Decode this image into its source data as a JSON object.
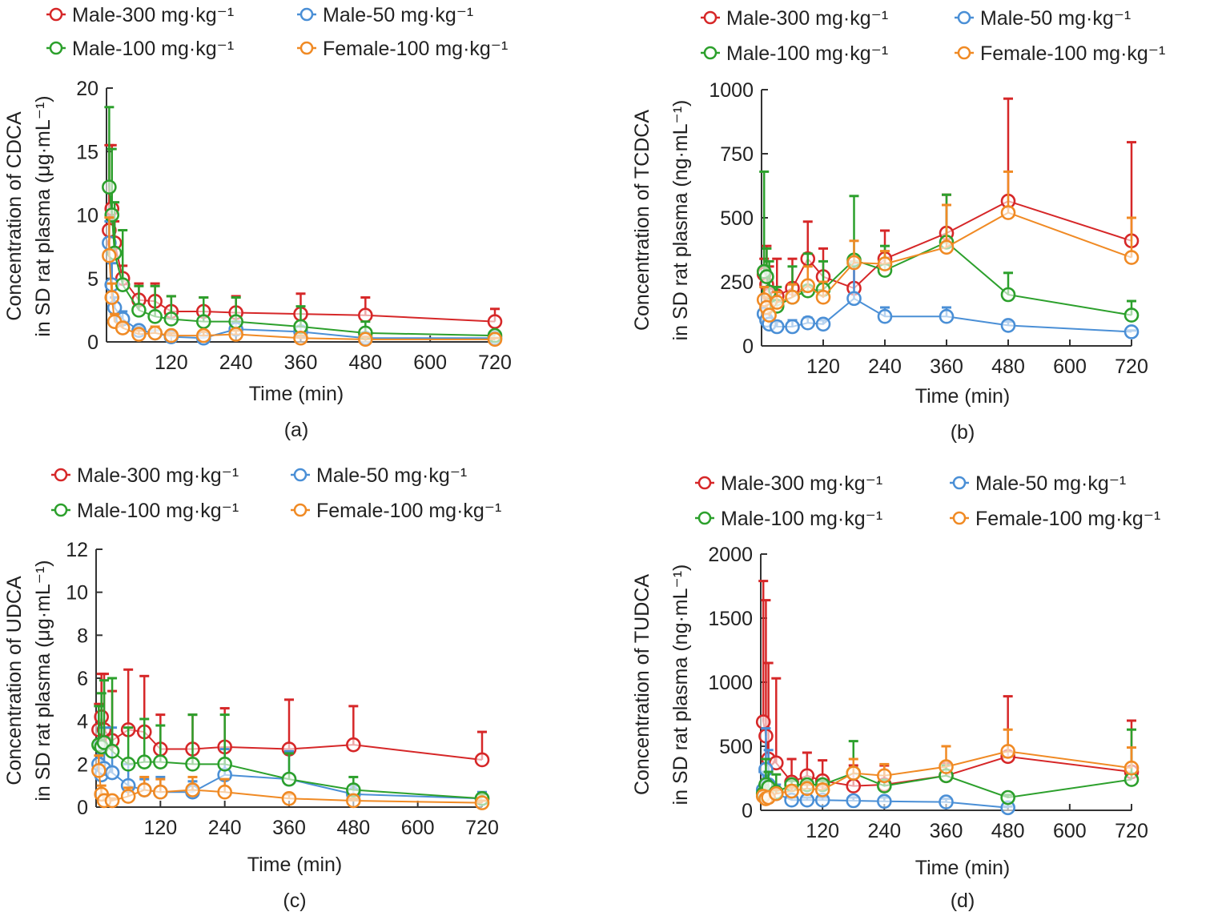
{
  "figure": {
    "legend": [
      {
        "name": "Male-300 mg·kg⁻¹",
        "color": "#d62728"
      },
      {
        "name": "Male-50 mg·kg⁻¹",
        "color": "#4a8fd6"
      },
      {
        "name": "Male-100 mg·kg⁻¹",
        "color": "#2ca02c"
      },
      {
        "name": "Female-100 mg·kg⁻¹",
        "color": "#f08a24"
      }
    ]
  },
  "chart_data": [
    {
      "type": "line",
      "panel_label": "(a)",
      "title": "",
      "xlabel": "Time (min)",
      "ylabel_line1": "Concentration of CDCA",
      "ylabel_line2": "in SD rat plasma (μg·mL⁻¹)",
      "xlim": [
        0,
        720
      ],
      "ylim": [
        0,
        20
      ],
      "xticks": [
        120,
        240,
        360,
        480,
        600,
        720
      ],
      "yticks": [
        0,
        5,
        10,
        15,
        20
      ],
      "grid": false,
      "legend_position": "top",
      "x": [
        5,
        10,
        15,
        30,
        60,
        90,
        120,
        180,
        240,
        360,
        480,
        720
      ],
      "series": [
        {
          "name": "Male-300 mg·kg⁻¹",
          "color": "#d62728",
          "values": [
            8.8,
            10.5,
            7.8,
            5.0,
            3.3,
            3.2,
            2.4,
            2.4,
            2.3,
            2.2,
            2.1,
            1.6
          ],
          "error_upper": [
            15.5,
            15.5,
            9.5,
            6.0,
            4.6,
            4.6,
            3.6,
            3.5,
            3.6,
            3.8,
            3.5,
            2.6
          ]
        },
        {
          "name": "Male-50 mg·kg⁻¹",
          "color": "#4a8fd6",
          "values": [
            7.8,
            4.5,
            2.7,
            1.8,
            0.9,
            0.7,
            0.4,
            0.3,
            1.0,
            0.8,
            0.3,
            0.3
          ],
          "error_upper": [
            9.5,
            6.2,
            3.5,
            2.4,
            1.2,
            0.9,
            0.6,
            0.5,
            1.6,
            1.2,
            0.5,
            0.4
          ]
        },
        {
          "name": "Male-100 mg·kg⁻¹",
          "color": "#2ca02c",
          "values": [
            12.2,
            10.0,
            7.0,
            4.5,
            2.5,
            2.0,
            1.8,
            1.6,
            1.6,
            1.2,
            0.7,
            0.5
          ],
          "error_upper": [
            18.5,
            15.2,
            11.0,
            8.8,
            4.4,
            4.4,
            3.6,
            3.5,
            3.5,
            2.8,
            1.6,
            0.7
          ]
        },
        {
          "name": "Female-100 mg·kg⁻¹",
          "color": "#f08a24",
          "values": [
            6.8,
            3.5,
            1.6,
            1.1,
            0.6,
            0.7,
            0.5,
            0.5,
            0.6,
            0.3,
            0.2,
            0.2
          ],
          "error_upper": [
            9.8,
            4.6,
            2.2,
            1.5,
            0.9,
            1.2,
            0.7,
            0.8,
            0.9,
            0.5,
            0.4,
            0.3
          ]
        }
      ]
    },
    {
      "type": "line",
      "panel_label": "(b)",
      "title": "",
      "xlabel": "Time (min)",
      "ylabel_line1": "Concentration of TCDCA",
      "ylabel_line2": "in SD rat plasma (ng·mL⁻¹)",
      "xlim": [
        0,
        720
      ],
      "ylim": [
        0,
        1000
      ],
      "xticks": [
        120,
        240,
        360,
        480,
        600,
        720
      ],
      "yticks": [
        0,
        250,
        500,
        750,
        1000
      ],
      "grid": false,
      "legend_position": "top",
      "x": [
        5,
        10,
        15,
        30,
        60,
        90,
        120,
        180,
        240,
        360,
        480,
        720
      ],
      "series": [
        {
          "name": "Male-300 mg·kg⁻¹",
          "color": "#d62728",
          "values": [
            280,
            240,
            200,
            195,
            225,
            340,
            270,
            225,
            340,
            440,
            565,
            410
          ],
          "error_upper": [
            340,
            390,
            310,
            340,
            340,
            485,
            380,
            330,
            450,
            590,
            965,
            795
          ]
        },
        {
          "name": "Male-50 mg·kg⁻¹",
          "color": "#4a8fd6",
          "values": [
            125,
            100,
            85,
            75,
            75,
            90,
            85,
            185,
            115,
            115,
            80,
            55
          ],
          "error_upper": [
            145,
            120,
            100,
            95,
            100,
            110,
            100,
            320,
            150,
            150,
            95,
            60
          ]
        },
        {
          "name": "Male-100 mg·kg⁻¹",
          "color": "#2ca02c",
          "values": [
            290,
            270,
            210,
            155,
            190,
            215,
            220,
            335,
            295,
            405,
            200,
            120
          ],
          "error_upper": [
            680,
            380,
            330,
            230,
            310,
            360,
            330,
            585,
            390,
            590,
            285,
            175
          ]
        },
        {
          "name": "Female-100 mg·kg⁻¹",
          "color": "#f08a24",
          "values": [
            180,
            150,
            120,
            170,
            190,
            235,
            190,
            325,
            320,
            385,
            520,
            345
          ],
          "error_upper": [
            230,
            190,
            140,
            210,
            240,
            310,
            250,
            410,
            370,
            550,
            680,
            500
          ]
        }
      ]
    },
    {
      "type": "line",
      "panel_label": "(c)",
      "title": "",
      "xlabel": "Time (min)",
      "ylabel_line1": "Concentration of UDCA",
      "ylabel_line2": "in SD rat plasma (μg·mL⁻¹)",
      "xlim": [
        0,
        720
      ],
      "ylim": [
        0,
        12
      ],
      "xticks": [
        120,
        240,
        360,
        480,
        600,
        720
      ],
      "yticks": [
        0,
        2,
        4,
        6,
        8,
        10,
        12
      ],
      "grid": false,
      "legend_position": "top",
      "x": [
        5,
        10,
        15,
        30,
        60,
        90,
        120,
        180,
        240,
        360,
        480,
        720
      ],
      "series": [
        {
          "name": "Male-300 mg·kg⁻¹",
          "color": "#d62728",
          "values": [
            3.6,
            4.2,
            3.6,
            3.1,
            3.6,
            3.5,
            2.7,
            2.7,
            2.8,
            2.7,
            2.9,
            2.2
          ],
          "error_upper": [
            4.8,
            6.2,
            6.2,
            5.4,
            6.4,
            6.1,
            4.3,
            4.3,
            4.6,
            5.0,
            4.7,
            3.5
          ]
        },
        {
          "name": "Male-50 mg·kg⁻¹",
          "color": "#4a8fd6",
          "values": [
            2.0,
            1.5,
            1.8,
            1.6,
            1.0,
            0.8,
            0.7,
            0.7,
            1.5,
            1.3,
            0.6,
            0.4
          ],
          "error_upper": [
            3.0,
            2.5,
            3.7,
            3.7,
            2.0,
            1.3,
            1.4,
            1.2,
            2.7,
            2.6,
            1.0,
            0.7
          ]
        },
        {
          "name": "Male-100 mg·kg⁻¹",
          "color": "#2ca02c",
          "values": [
            2.9,
            2.8,
            3.0,
            2.6,
            2.0,
            2.1,
            2.1,
            2.0,
            2.0,
            1.3,
            0.8,
            0.4
          ],
          "error_upper": [
            4.7,
            5.3,
            5.9,
            6.0,
            3.7,
            4.1,
            3.8,
            4.3,
            4.3,
            2.5,
            1.4,
            0.6
          ]
        },
        {
          "name": "Female-100 mg·kg⁻¹",
          "color": "#f08a24",
          "values": [
            1.7,
            0.6,
            0.3,
            0.3,
            0.5,
            0.8,
            0.7,
            0.8,
            0.7,
            0.4,
            0.3,
            0.2
          ],
          "error_upper": [
            2.4,
            1.0,
            0.6,
            0.4,
            0.9,
            1.4,
            1.3,
            1.4,
            1.3,
            0.6,
            0.4,
            0.3
          ]
        }
      ]
    },
    {
      "type": "line",
      "panel_label": "(d)",
      "title": "",
      "xlabel": "Time (min)",
      "ylabel_line1": "Concentration of TUDCA",
      "ylabel_line2": "in SD rat plasma (ng·mL⁻¹)",
      "xlim": [
        0,
        720
      ],
      "ylim": [
        0,
        2000
      ],
      "xticks": [
        120,
        240,
        360,
        480,
        600,
        720
      ],
      "yticks": [
        0,
        500,
        1000,
        1500,
        2000
      ],
      "grid": false,
      "legend_position": "top",
      "x": [
        5,
        10,
        15,
        30,
        60,
        90,
        120,
        180,
        240,
        360,
        480,
        720
      ],
      "series": [
        {
          "name": "Male-300 mg·kg⁻¹",
          "color": "#d62728",
          "values": [
            690,
            580,
            400,
            370,
            220,
            270,
            230,
            190,
            200,
            270,
            420,
            300
          ],
          "error_upper": [
            1790,
            1640,
            1150,
            1030,
            400,
            450,
            390,
            350,
            350,
            370,
            890,
            700
          ]
        },
        {
          "name": "Male-50 mg·kg⁻¹",
          "color": "#4a8fd6",
          "values": [
            160,
            320,
            200,
            130,
            80,
            80,
            80,
            75,
            70,
            65,
            20,
            null
          ],
          "error_upper": [
            300,
            640,
            470,
            200,
            100,
            100,
            100,
            100,
            100,
            90,
            30,
            null
          ]
        },
        {
          "name": "Male-100 mg·kg⁻¹",
          "color": "#2ca02c",
          "values": [
            130,
            200,
            180,
            140,
            200,
            200,
            200,
            290,
            190,
            270,
            100,
            240
          ],
          "error_upper": [
            200,
            400,
            300,
            280,
            230,
            230,
            230,
            540,
            230,
            350,
            120,
            630
          ]
        },
        {
          "name": "Female-100 mg·kg⁻¹",
          "color": "#f08a24",
          "values": [
            110,
            90,
            100,
            130,
            150,
            170,
            160,
            290,
            270,
            340,
            460,
            330
          ],
          "error_upper": [
            150,
            110,
            130,
            160,
            180,
            200,
            200,
            400,
            360,
            500,
            630,
            490
          ]
        }
      ]
    }
  ]
}
